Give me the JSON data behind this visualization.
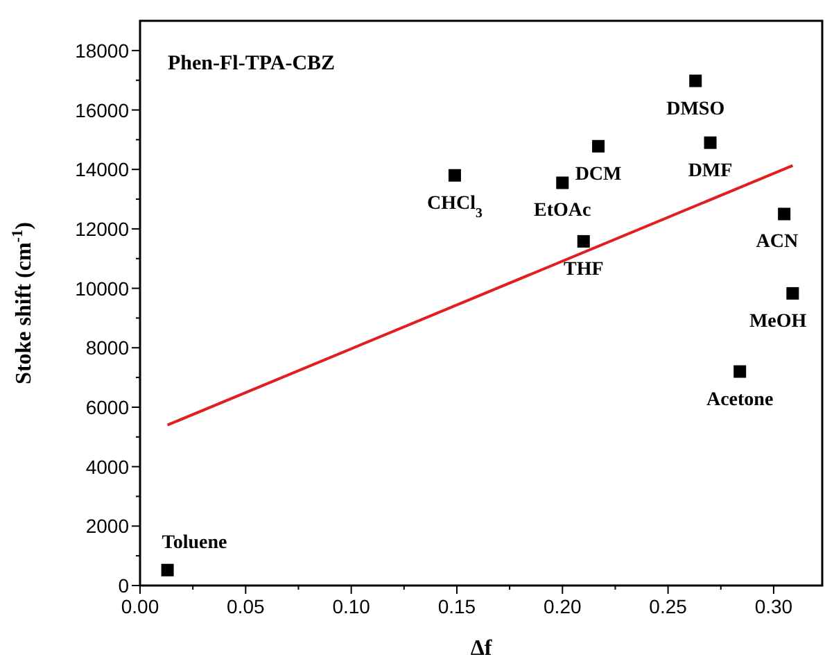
{
  "chart_data": {
    "type": "scatter",
    "xlabel": "Δf",
    "ylabel": "Stoke shift (cm$^{-1}$)",
    "marker": "square",
    "xlim": [
      0,
      0.323
    ],
    "ylim": [
      0,
      19000
    ],
    "xticks": [
      {
        "value": 0,
        "label": "0.00"
      },
      {
        "value": 0.025,
        "label": null
      },
      {
        "value": 0.05,
        "label": "0.05"
      },
      {
        "value": 0.075,
        "label": null
      },
      {
        "value": 0.1,
        "label": "0.10"
      },
      {
        "value": 0.125,
        "label": null
      },
      {
        "value": 0.15,
        "label": "0.15"
      },
      {
        "value": 0.175,
        "label": null
      },
      {
        "value": 0.2,
        "label": "0.20"
      },
      {
        "value": 0.225,
        "label": null
      },
      {
        "value": 0.25,
        "label": "0.25"
      },
      {
        "value": 0.275,
        "label": null
      },
      {
        "value": 0.3,
        "label": "0.30"
      }
    ],
    "yticks": [
      0,
      {
        "value": 1000,
        "label": null
      },
      2000,
      {
        "value": 3000,
        "label": null
      },
      4000,
      {
        "value": 5000,
        "label": null
      },
      6000,
      {
        "value": 7000,
        "label": null
      },
      8000,
      {
        "value": 9000,
        "label": null
      },
      10000,
      {
        "value": 11000,
        "label": null
      },
      12000,
      {
        "value": 13000,
        "label": null
      },
      14000,
      {
        "value": 15000,
        "label": null
      },
      16000,
      {
        "value": 17000,
        "label": null
      },
      18000
    ],
    "series": [
      {
        "color": "#000000",
        "x": [
          0.013,
          0.149,
          0.2,
          0.21,
          0.217,
          0.263,
          0.27,
          0.305,
          0.309,
          0.284
        ],
        "values": [
          520,
          13800,
          13550,
          11580,
          14780,
          16980,
          14900,
          12500,
          9830,
          7200
        ]
      },
      {
        "type": "line",
        "marker": "none",
        "color": "#e02020",
        "x": [
          0.013,
          0.309
        ],
        "values": [
          5400,
          14130
        ]
      }
    ],
    "annotations": [
      "Phen-Fl-TPA-CBZ",
      {
        "text": "Toluene",
        "x": 0.013,
        "y": 520
      },
      {
        "text": "CHCl$_{3}$",
        "x": 0.149,
        "y": 13800
      },
      {
        "text": "EtOAc",
        "x": 0.2,
        "y": 13550
      },
      {
        "text": "THF",
        "x": 0.21,
        "y": 11580
      },
      {
        "text": "DCM",
        "x": 0.217,
        "y": 14780
      },
      {
        "text": "DMSO",
        "x": 0.263,
        "y": 16980
      },
      {
        "text": "DMF",
        "x": 0.27,
        "y": 14900
      },
      {
        "text": "ACN",
        "x": 0.305,
        "y": 12500
      },
      {
        "text": "MeOH",
        "x": 0.309,
        "y": 9830
      },
      {
        "text": "Acetone",
        "x": 0.284,
        "y": 7200
      }
    ]
  }
}
